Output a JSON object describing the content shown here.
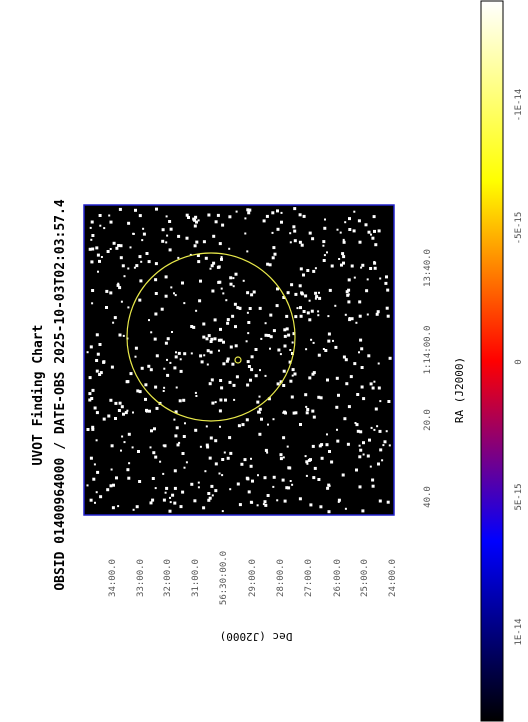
{
  "title": "UVOT Finding Chart",
  "subtitle": "OBSID 01400964000 / DATE-OBS 2025-10-03T02:03:57.4",
  "x_label": "RA (J2000)",
  "y_label": "Dec (J2000)",
  "dec_ticks": [
    "34:00.0",
    "33:00.0",
    "32:00.0",
    "31:00.0",
    "56:30:00.0",
    "29:00.0",
    "28:00.0",
    "27:00.0",
    "26:00.0",
    "25:00.0",
    "24:00.0"
  ],
  "ra_ticks": [
    "40.0",
    "20.0",
    "1:14:00.0",
    "13:40.0"
  ],
  "colorbar_ticks": [
    "1E-14",
    "5E-15",
    "0",
    "-5E-15",
    "-1E-14"
  ]
}
